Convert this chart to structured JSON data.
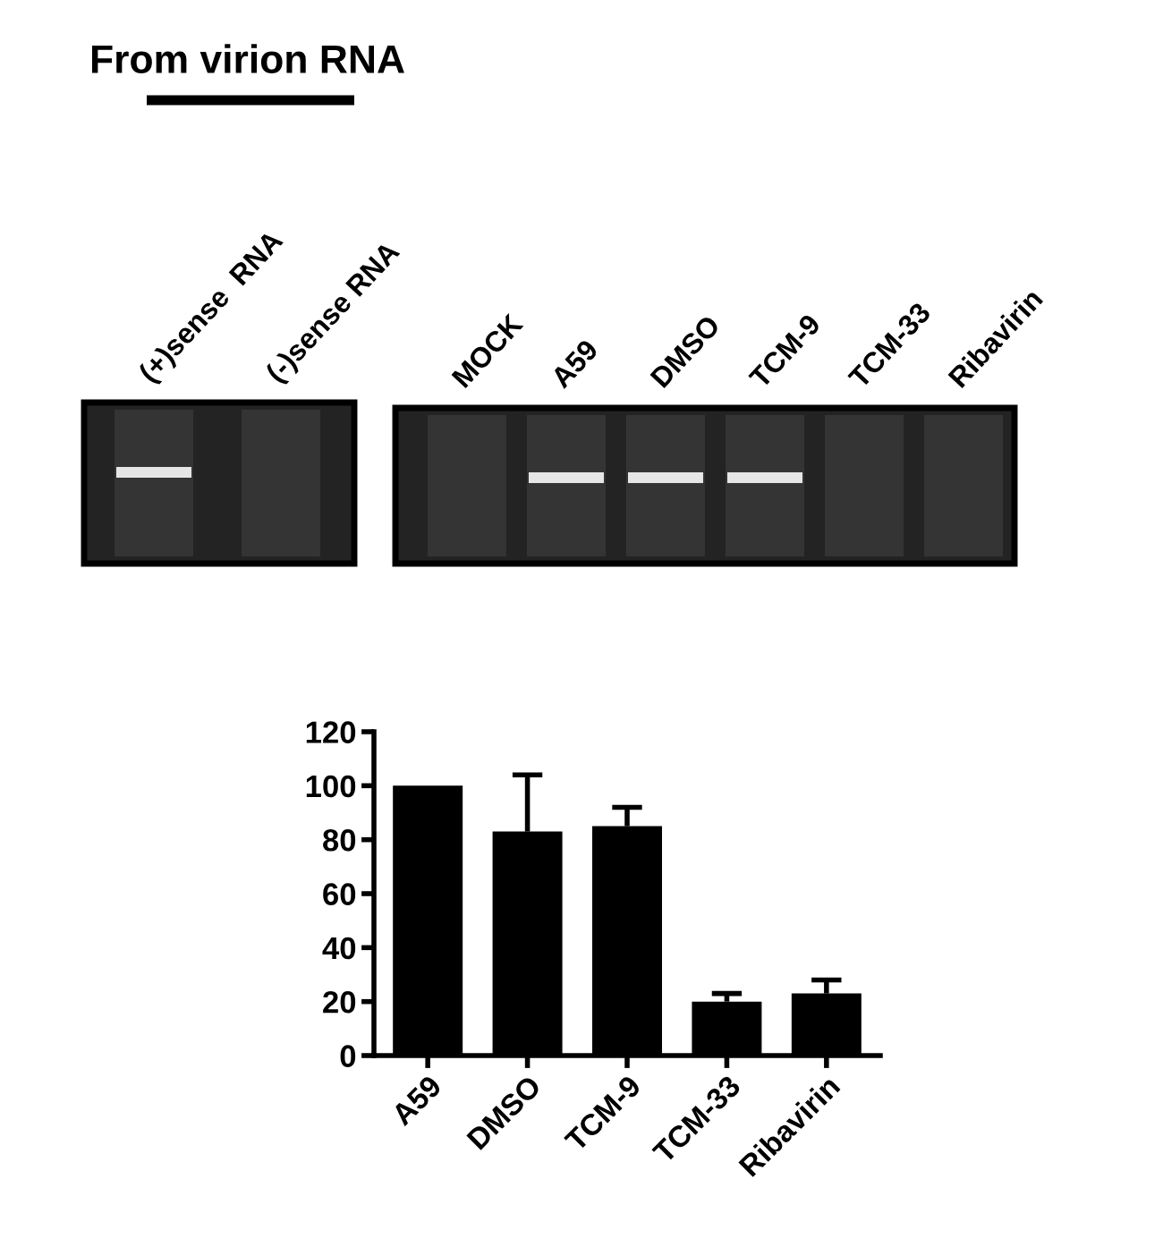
{
  "chart_data": [
    {
      "type": "other",
      "title": "From virion RNA",
      "annotations": [
        "(+)sense  RNA",
        "(-)sense RNA",
        "MOCK",
        "A59",
        "DMSO",
        "TCM-9",
        "TCM-33",
        "Ribavirin"
      ]
    },
    {
      "type": "bar",
      "categories": [
        "A59",
        "DMSO",
        "TCM-9",
        "TCM-33",
        "Ribavirin"
      ],
      "values": [
        100,
        83,
        85,
        20,
        23
      ],
      "errors": [
        null,
        [
          83,
          104
        ],
        [
          85,
          92
        ],
        [
          20,
          23
        ],
        [
          23,
          28
        ]
      ],
      "color": "#000000",
      "ylim": [
        0,
        120
      ],
      "yticks": [
        0,
        20,
        40,
        60,
        80,
        100,
        120
      ]
    }
  ]
}
